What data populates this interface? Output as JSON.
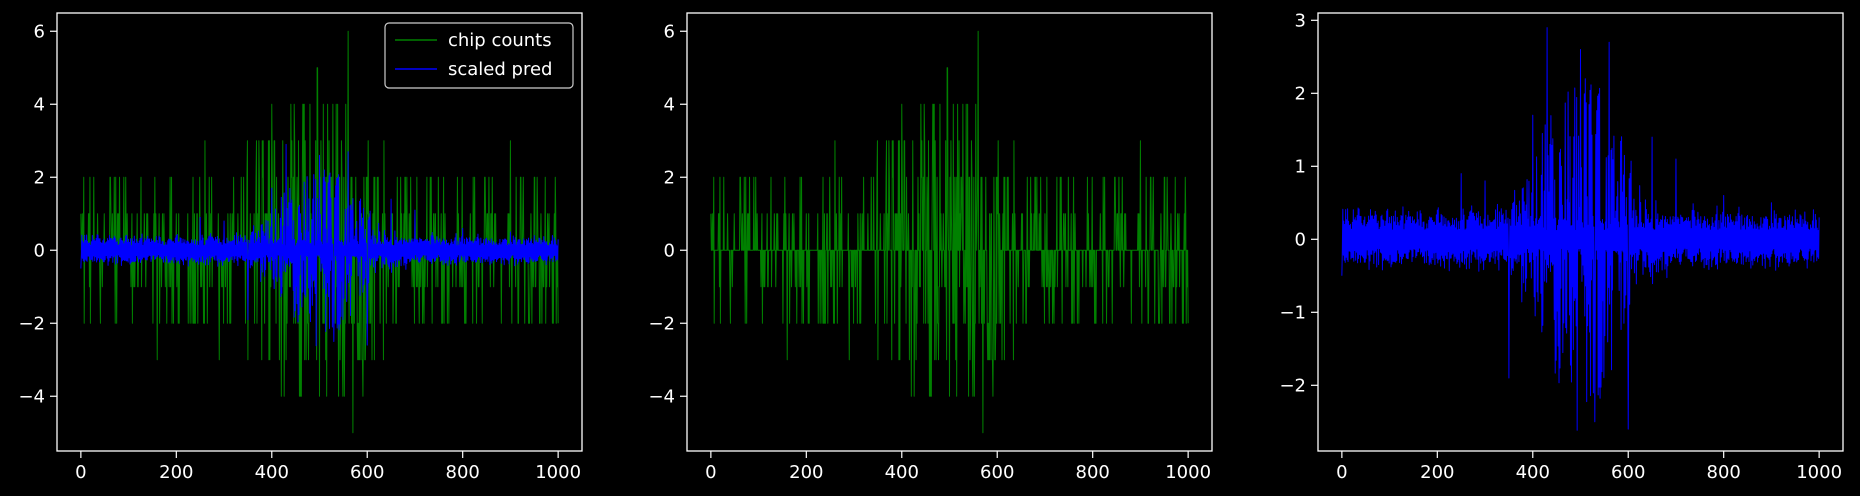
{
  "figure": {
    "background": "#000000",
    "foreground": "#ffffff"
  },
  "chart_data": [
    {
      "type": "line",
      "title": "",
      "xlabel": "",
      "ylabel": "",
      "xlim": [
        -50,
        1050
      ],
      "ylim": [
        -5.5,
        6.5
      ],
      "xticks": [
        0,
        200,
        400,
        600,
        800,
        1000
      ],
      "yticks": [
        -4,
        -2,
        0,
        2,
        4,
        6
      ],
      "tick_labels_x": [
        "0",
        "200",
        "400",
        "600",
        "800",
        "1000"
      ],
      "tick_labels_y": [
        "−4",
        "−2",
        "0",
        "2",
        "4",
        "6"
      ],
      "grid": false,
      "legend": {
        "placement": "upper-right",
        "entries": [
          "chip counts",
          "scaled pred"
        ]
      },
      "series": [
        {
          "name": "chip counts",
          "color": "#008000",
          "style": "sparse integer spikes (-5 to 6) around 0, dense between x≈300 and x≈650",
          "x": [
            0,
            40,
            90,
            120,
            160,
            200,
            240,
            260,
            290,
            320,
            350,
            380,
            400,
            420,
            440,
            460,
            480,
            500,
            520,
            540,
            560,
            570,
            600,
            640,
            700,
            760,
            800,
            860,
            900,
            940,
            1000
          ],
          "y": [
            1,
            -1,
            2,
            -1,
            -3,
            1,
            -2,
            3,
            -3,
            2,
            -3,
            3,
            4,
            -4,
            4,
            -4,
            4,
            -4,
            3,
            -4,
            6,
            -5,
            2,
            -2,
            1,
            2,
            -1,
            1,
            3,
            -2,
            -2
          ]
        },
        {
          "name": "scaled pred",
          "color": "#0000ff",
          "style": "two mirrored noisy envelopes around 0, largest amplitude between x≈350 and x≈650",
          "x": [
            0,
            100,
            200,
            250,
            300,
            350,
            400,
            430,
            460,
            500,
            530,
            560,
            600,
            650,
            700,
            800,
            900,
            1000
          ],
          "y": [
            -0.5,
            0.3,
            0.4,
            0.9,
            0.8,
            -1.9,
            1.7,
            2.9,
            1.0,
            2.6,
            -2.5,
            2.7,
            -2.6,
            1.4,
            1.1,
            0.6,
            0.5,
            0.3
          ]
        }
      ]
    },
    {
      "type": "line",
      "title": "",
      "xlabel": "",
      "ylabel": "",
      "xlim": [
        -50,
        1050
      ],
      "ylim": [
        -5.5,
        6.5
      ],
      "xticks": [
        0,
        200,
        400,
        600,
        800,
        1000
      ],
      "yticks": [
        -4,
        -2,
        0,
        2,
        4,
        6
      ],
      "tick_labels_x": [
        "0",
        "200",
        "400",
        "600",
        "800",
        "1000"
      ],
      "tick_labels_y": [
        "−4",
        "−2",
        "0",
        "2",
        "4",
        "6"
      ],
      "grid": false,
      "legend": null,
      "series": [
        {
          "color": "#008000",
          "style": "sparse integer spikes (-5 to 6) around 0, dense between x≈300 and x≈650",
          "x": [
            0,
            40,
            90,
            120,
            160,
            200,
            240,
            260,
            290,
            320,
            350,
            380,
            400,
            420,
            440,
            460,
            480,
            500,
            520,
            540,
            560,
            570,
            600,
            640,
            700,
            760,
            800,
            860,
            900,
            940,
            1000
          ],
          "y": [
            1,
            -1,
            2,
            -1,
            -3,
            1,
            -2,
            3,
            -3,
            2,
            -3,
            3,
            4,
            -4,
            4,
            -4,
            4,
            -4,
            3,
            -4,
            6,
            -5,
            2,
            -2,
            1,
            2,
            -1,
            1,
            3,
            -2,
            -2
          ]
        }
      ]
    },
    {
      "type": "line",
      "title": "",
      "xlabel": "",
      "ylabel": "",
      "xlim": [
        -50,
        1050
      ],
      "ylim": [
        -2.9,
        3.1
      ],
      "xticks": [
        0,
        200,
        400,
        600,
        800,
        1000
      ],
      "yticks": [
        -2,
        -1,
        0,
        1,
        2,
        3
      ],
      "tick_labels_x": [
        "0",
        "200",
        "400",
        "600",
        "800",
        "1000"
      ],
      "tick_labels_y": [
        "−2",
        "−1",
        "0",
        "1",
        "2",
        "3"
      ],
      "grid": false,
      "legend": null,
      "series": [
        {
          "color": "#0000ff",
          "style": "two mirrored noisy envelopes (upper ≈ +0.1 to +2.9, lower ≈ -0.1 to -2.6), largest between x≈350 and x≈650",
          "x": [
            0,
            100,
            200,
            250,
            300,
            350,
            400,
            430,
            460,
            500,
            530,
            560,
            600,
            650,
            700,
            800,
            900,
            1000
          ],
          "y": [
            -0.5,
            0.3,
            0.4,
            0.9,
            0.8,
            -1.9,
            1.7,
            2.9,
            1.0,
            2.6,
            -2.5,
            2.7,
            -2.6,
            1.4,
            1.1,
            0.6,
            0.5,
            0.3
          ]
        }
      ]
    }
  ]
}
